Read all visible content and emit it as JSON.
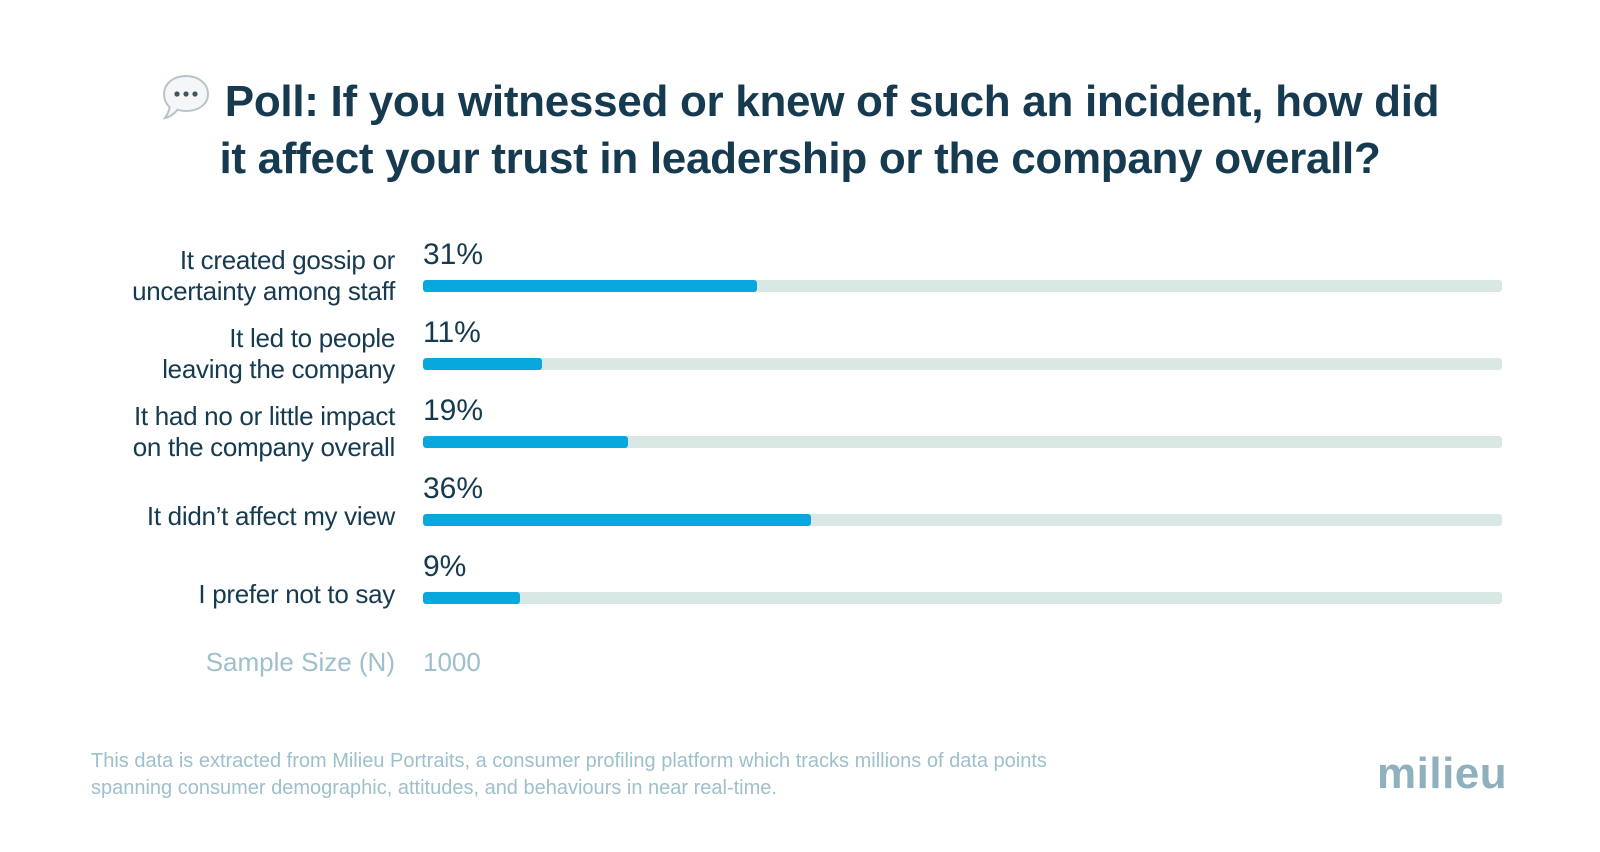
{
  "title": {
    "line1": "Poll: If you witnessed or knew of such an incident, how did",
    "line2": "it affect your trust in leadership or the company overall?",
    "icon": "speech-bubble-icon"
  },
  "chart_data": {
    "type": "bar",
    "orientation": "horizontal",
    "categories": [
      [
        "It created gossip or",
        "uncertainty among staff"
      ],
      [
        "It led to people",
        "leaving the company"
      ],
      [
        "It had no or little impact",
        "on the company overall"
      ],
      [
        "It didn’t affect my view"
      ],
      [
        "I prefer not to say"
      ]
    ],
    "values": [
      31,
      11,
      19,
      36,
      9
    ],
    "value_labels": [
      "31%",
      "11%",
      "19%",
      "36%",
      "9%"
    ],
    "xlim": [
      0,
      100
    ],
    "grid": false,
    "bar_color": "#08a8df",
    "track_color": "#d9e8e5"
  },
  "sample": {
    "label": "Sample Size (N)",
    "value": "1000"
  },
  "footnote": {
    "line1": "This data is extracted from Milieu Portraits, a consumer profiling platform which tracks millions of data points",
    "line2": "spanning consumer demographic, attitudes, and behaviours in near real-time."
  },
  "logo": {
    "text": "milieu"
  },
  "colors": {
    "title": "#163a4f",
    "muted": "#9ebfcc",
    "logo": "#8fb0bd"
  }
}
